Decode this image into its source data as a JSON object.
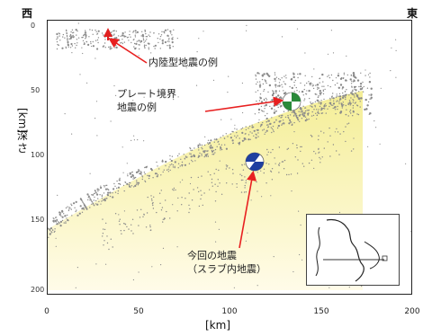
{
  "direction": {
    "west": "西",
    "east": "東"
  },
  "axes": {
    "x_unit": "[km]",
    "y_unit": "[km]",
    "y_label": "深さ",
    "x_ticks": [
      "0",
      "50",
      "100",
      "150",
      "200"
    ],
    "y_ticks": [
      "0",
      "50",
      "100",
      "150",
      "200"
    ],
    "x_range": [
      0,
      200
    ],
    "y_range": [
      0,
      200
    ]
  },
  "annotations": {
    "inland": "内陸型地震の例",
    "plate_line1": "プレート境界",
    "plate_line2": "地震の例",
    "current_line1": "今回の地震",
    "current_line2": "（スラブ内地震）"
  },
  "markers": {
    "inland": {
      "x_km": 33,
      "depth_km": 10,
      "shape": "triangle",
      "color": "#e02020"
    },
    "plate_boundary": {
      "x_km": 135,
      "depth_km": 58,
      "mechanism": "beachball",
      "color": "#2a8a3a"
    },
    "current_event": {
      "x_km": 113,
      "depth_km": 100,
      "mechanism": "beachball",
      "color": "#1f3fa0"
    }
  },
  "colors": {
    "seismicity": "#8a8a8a",
    "slab_fill_top": "#f3ec8a",
    "slab_fill_bottom": "#fffbe6",
    "arrow": "#e82020"
  },
  "inset": {
    "type": "location-map"
  }
}
